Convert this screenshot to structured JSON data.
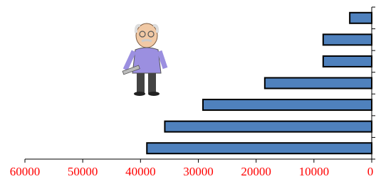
{
  "chart_data": {
    "type": "bar",
    "orientation": "horizontal",
    "categories": [
      null,
      null,
      null,
      null,
      null,
      null,
      null
    ],
    "values": [
      3800,
      8400,
      8400,
      18500,
      29200,
      35800,
      38900
    ],
    "color": "#4f81bd",
    "xlim": [
      60000,
      0
    ],
    "xticks": [
      60000,
      50000,
      40000,
      30000,
      20000,
      10000,
      0
    ],
    "tick_label_color": "#ff0000",
    "grid": false
  }
}
